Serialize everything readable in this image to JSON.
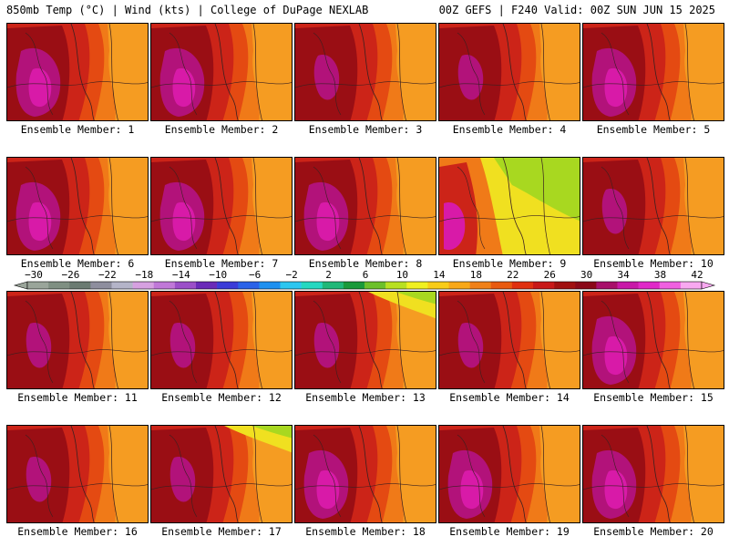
{
  "header": {
    "left_title": "850mb Temp (°C) | Wind (kts) | College of DuPage NEXLAB",
    "right_title": "00Z GEFS | F240 Valid: 00Z SUN JUN 15 2025"
  },
  "members": [
    {
      "label": "Ensemble Member: 1",
      "style": "hot"
    },
    {
      "label": "Ensemble Member: 2",
      "style": "hot"
    },
    {
      "label": "Ensemble Member: 3",
      "style": "warm"
    },
    {
      "label": "Ensemble Member: 4",
      "style": "warm"
    },
    {
      "label": "Ensemble Member: 5",
      "style": "hot"
    },
    {
      "label": "Ensemble Member: 6",
      "style": "hot"
    },
    {
      "label": "Ensemble Member: 7",
      "style": "hot"
    },
    {
      "label": "Ensemble Member: 8",
      "style": "hot"
    },
    {
      "label": "Ensemble Member: 9",
      "style": "cool"
    },
    {
      "label": "Ensemble Member: 10",
      "style": "warm"
    },
    {
      "label": "Ensemble Member: 11",
      "style": "warm"
    },
    {
      "label": "Ensemble Member: 12",
      "style": "warm"
    },
    {
      "label": "Ensemble Member: 13",
      "style": "cool-corner"
    },
    {
      "label": "Ensemble Member: 14",
      "style": "warm"
    },
    {
      "label": "Ensemble Member: 15",
      "style": "hot"
    },
    {
      "label": "Ensemble Member: 16",
      "style": "warm"
    },
    {
      "label": "Ensemble Member: 17",
      "style": "cool-corner"
    },
    {
      "label": "Ensemble Member: 18",
      "style": "hot"
    },
    {
      "label": "Ensemble Member: 19",
      "style": "hot"
    },
    {
      "label": "Ensemble Member: 20",
      "style": "hot"
    }
  ],
  "colorbar": {
    "tick_labels": [
      "-30",
      "-26",
      "-22",
      "-18",
      "-14",
      "-10",
      "-6",
      "-2",
      "2",
      "6",
      "10",
      "14",
      "18",
      "22",
      "26",
      "30",
      "34",
      "38",
      "42"
    ],
    "colors": [
      "#9aa59a",
      "#7f8f82",
      "#6b7b72",
      "#8e8e9e",
      "#b4b4c8",
      "#d6a0e0",
      "#c078d8",
      "#9b4fc8",
      "#6a2ab8",
      "#3b3bd8",
      "#2a62e8",
      "#1e90f0",
      "#2cc6f0",
      "#25d8c0",
      "#20b878",
      "#1a9a3a",
      "#6cc02a",
      "#b8e020",
      "#f0f020",
      "#f8cc18",
      "#f8a818",
      "#f08018",
      "#e85a10",
      "#e03010",
      "#c81818",
      "#a01010",
      "#8a0818",
      "#a8106a",
      "#c818a8",
      "#e028c8",
      "#f060e0",
      "#f8a8f0"
    ]
  },
  "palette": {
    "orange": "#f07a18",
    "light_orange": "#f59c22",
    "red_orange": "#e44a12",
    "red": "#cc2418",
    "dark_red": "#9a0e14",
    "magenta": "#b2127a",
    "pink": "#d81aa8",
    "yellow": "#f0e020",
    "lime": "#a8d820",
    "contour": "#3a2020"
  }
}
